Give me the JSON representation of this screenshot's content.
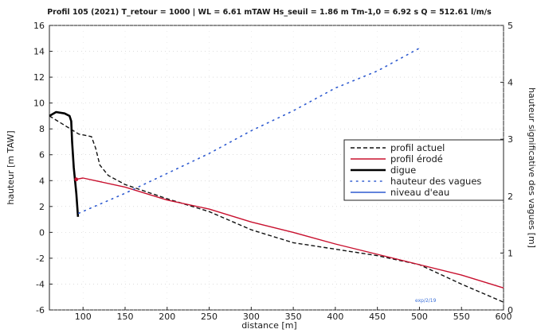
{
  "chart_data": {
    "type": "line",
    "title": "Profil 105 (2021)  T_retour = 1000 | WL = 6.61 mTAW  Hs_seuil = 1.86 m  Tm-1,0 = 6.92 s  Q = 512.61 l/m/s",
    "xlabel": "distance [m]",
    "ylabel": "hauteur [m TAW]",
    "y2label": "hauteur significative des vagues [m]",
    "xlim": [
      60,
      600
    ],
    "ylim": [
      -6,
      16
    ],
    "y2lim": [
      0,
      5
    ],
    "x_ticks": [
      "100",
      "150",
      "200",
      "250",
      "300",
      "350",
      "400",
      "450",
      "500",
      "550",
      "600"
    ],
    "y_ticks": [
      "-6",
      "-4",
      "-2",
      "0",
      "2",
      "4",
      "6",
      "8",
      "10",
      "12",
      "14",
      "16"
    ],
    "y2_ticks": [
      "0",
      "1",
      "2",
      "3",
      "4",
      "5"
    ],
    "grid": true,
    "legend_position": "right",
    "series": [
      {
        "name": "profil actuel",
        "axis": "left",
        "color": "#111111",
        "dash": "dashed",
        "x": [
          60,
          95,
          110,
          115,
          120,
          130,
          150,
          200,
          250,
          300,
          350,
          400,
          450,
          500,
          550,
          600
        ],
        "y": [
          9.0,
          7.6,
          7.4,
          6.5,
          5.2,
          4.4,
          3.7,
          2.6,
          1.6,
          0.2,
          -0.8,
          -1.3,
          -1.8,
          -2.5,
          -4.0,
          -5.4
        ]
      },
      {
        "name": "profil érodé",
        "axis": "left",
        "color": "#c8102e",
        "dash": "solid",
        "x": [
          92,
          100,
          150,
          200,
          250,
          300,
          350,
          400,
          450,
          500,
          550,
          600
        ],
        "y": [
          4.1,
          4.2,
          3.5,
          2.5,
          1.8,
          0.8,
          0.0,
          -0.9,
          -1.7,
          -2.5,
          -3.3,
          -4.3
        ]
      },
      {
        "name": "digue",
        "axis": "left",
        "color": "#000000",
        "dash": "solid",
        "x": [
          60,
          68,
          78,
          84,
          86,
          87,
          89,
          92,
          94
        ],
        "y": [
          9.0,
          9.3,
          9.2,
          9.0,
          8.6,
          7.0,
          5.0,
          3.0,
          1.2
        ]
      },
      {
        "name": "hauteur des vagues",
        "axis": "right",
        "color": "#2f5bd0",
        "dash": "dotted",
        "x": [
          95,
          150,
          200,
          250,
          300,
          350,
          400,
          450,
          500
        ],
        "y": [
          1.7,
          2.05,
          2.4,
          2.75,
          3.15,
          3.5,
          3.9,
          4.2,
          4.6
        ]
      },
      {
        "name": "niveau d'eau",
        "axis": "left",
        "color": "#2f5bd0",
        "dash": "solid",
        "x": [],
        "y": []
      }
    ],
    "annotation": "exp/2/19"
  }
}
